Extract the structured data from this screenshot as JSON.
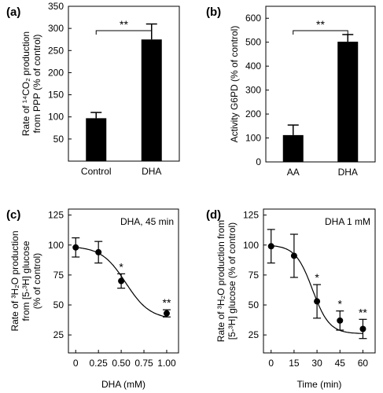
{
  "chart_data": [
    {
      "panel": "(a)",
      "type": "bar",
      "categories": [
        "Control",
        "DHA"
      ],
      "values": [
        97,
        275
      ],
      "errors": [
        13,
        35
      ],
      "ylabel_lines": [
        "Rate of ¹⁴CO₂ production",
        "from PPP (% of control)"
      ],
      "ylim": [
        0,
        350
      ],
      "yticks": [
        50,
        100,
        150,
        200,
        250,
        300,
        350
      ],
      "significance": "**",
      "color": "#000000"
    },
    {
      "panel": "(b)",
      "type": "bar",
      "categories": [
        "AA",
        "DHA"
      ],
      "values": [
        112,
        502
      ],
      "errors": [
        42,
        30
      ],
      "ylabel_lines": [
        "Activity G6PD (% of control)"
      ],
      "ylim": [
        0,
        650
      ],
      "yticks": [
        0,
        100,
        200,
        300,
        400,
        500,
        600
      ],
      "significance": "**",
      "color": "#000000"
    },
    {
      "panel": "(c)",
      "type": "line",
      "x_is_categorical_ticks": true,
      "xticks": [
        "0",
        "0.25",
        "0.50",
        "0.75",
        "1.00"
      ],
      "xtick_values": [
        0,
        0.25,
        0.5,
        0.75,
        1.0
      ],
      "x": [
        0,
        0.25,
        0.5,
        1.0
      ],
      "y": [
        98,
        94,
        70,
        43
      ],
      "errors": [
        8,
        9,
        6,
        3
      ],
      "point_marks": [
        "",
        "",
        "*",
        "**"
      ],
      "xlabel": "DHA (mM)",
      "ylabel_lines": [
        "Rate of ³H₂O production",
        "from [5-³H] glucose",
        "(% of control)"
      ],
      "xlim": [
        -0.08,
        1.13
      ],
      "ylim": [
        10,
        130
      ],
      "yticks": [
        25,
        50,
        75,
        100,
        125
      ],
      "annotation": "DHA, 45 min",
      "fit": {
        "top": 99,
        "bottom": 38,
        "x50": 0.55,
        "slope": 7.5
      }
    },
    {
      "panel": "(d)",
      "type": "line",
      "x": [
        0,
        15,
        30,
        45,
        60
      ],
      "y": [
        99,
        91,
        53,
        37,
        30
      ],
      "errors": [
        14,
        18,
        14,
        8,
        8
      ],
      "point_marks": [
        "",
        "",
        "*",
        "*",
        "**"
      ],
      "xlabel": "Time (min)",
      "ylabel_lines": [
        "Rate of ³H₂O production from",
        "[5-³H] glucose  (% of control)"
      ],
      "xlim": [
        -5,
        68
      ],
      "ylim": [
        10,
        130
      ],
      "xticks": [
        0,
        15,
        30,
        45,
        60
      ],
      "yticks": [
        25,
        50,
        75,
        100,
        125
      ],
      "annotation": "DHA 1 mM",
      "fit": {
        "top": 100,
        "bottom": 26,
        "x50": 27,
        "slope": 0.18
      }
    }
  ]
}
